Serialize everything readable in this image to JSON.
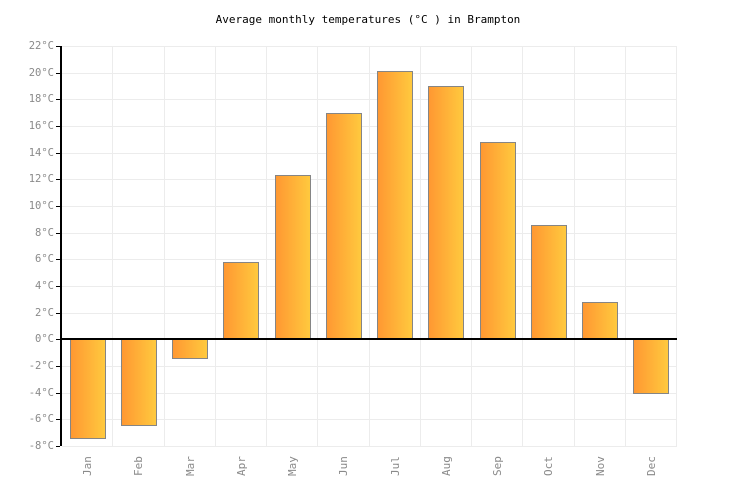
{
  "chart_data": {
    "type": "bar",
    "title": "Average monthly temperatures (°C ) in Brampton",
    "categories": [
      "Jan",
      "Feb",
      "Mar",
      "Apr",
      "May",
      "Jun",
      "Jul",
      "Aug",
      "Sep",
      "Oct",
      "Nov",
      "Dec"
    ],
    "values": [
      -7.5,
      -6.5,
      -1.5,
      5.8,
      12.3,
      17,
      20.1,
      19,
      14.8,
      8.6,
      2.8,
      -4.1
    ],
    "xlabel": "",
    "ylabel": "",
    "ylim": [
      -8,
      22
    ],
    "ytick_step": 2,
    "yticks": [
      "22°C",
      "20°C",
      "18°C",
      "16°C",
      "14°C",
      "12°C",
      "10°C",
      "8°C",
      "6°C",
      "4°C",
      "2°C",
      "0°C",
      "-2°C",
      "-4°C",
      "-6°C",
      "-8°C"
    ],
    "grid": true,
    "legend": null,
    "colors": {
      "bar_gradient_left": "#ff9832",
      "bar_gradient_right": "#ffc93e",
      "bar_border": "#858585",
      "gridline": "#ececec",
      "axis": "#000000",
      "zero_line": "#000000",
      "tick_label": "#8a8a8a",
      "title": "#000000",
      "background": "#ffffff"
    }
  }
}
